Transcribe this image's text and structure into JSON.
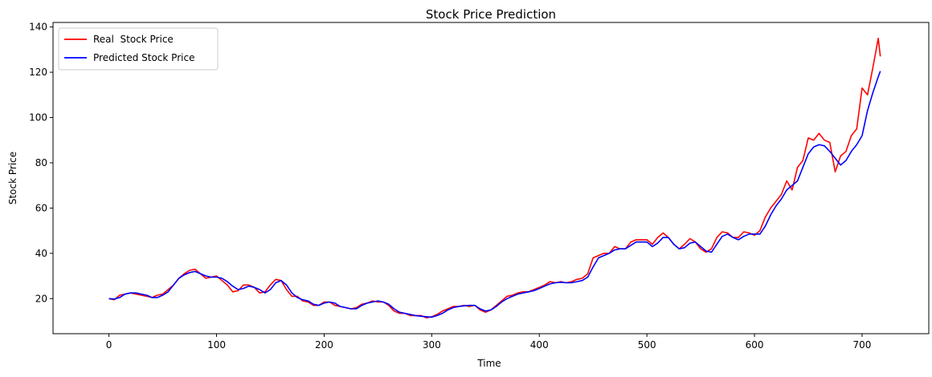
{
  "chart_data": {
    "type": "line",
    "title": "Stock Price Prediction",
    "xlabel": "Time",
    "ylabel": "Stock Price",
    "xlim": [
      -52,
      762
    ],
    "ylim": [
      4.5,
      142
    ],
    "xticks": [
      0,
      100,
      200,
      300,
      400,
      500,
      600,
      700
    ],
    "yticks": [
      20,
      40,
      60,
      80,
      100,
      120,
      140
    ],
    "grid": false,
    "legend_position": "top-left",
    "series": [
      {
        "name": "Real  Stock Price",
        "color": "#ff0000",
        "points": [
          [
            0,
            20
          ],
          [
            5,
            19.5
          ],
          [
            10,
            21.5
          ],
          [
            15,
            22
          ],
          [
            20,
            22.5
          ],
          [
            25,
            22
          ],
          [
            30,
            21.5
          ],
          [
            35,
            21
          ],
          [
            40,
            20.5
          ],
          [
            45,
            21.5
          ],
          [
            50,
            22
          ],
          [
            55,
            24
          ],
          [
            60,
            26
          ],
          [
            65,
            29
          ],
          [
            70,
            31
          ],
          [
            75,
            32.5
          ],
          [
            80,
            33
          ],
          [
            85,
            31
          ],
          [
            90,
            29
          ],
          [
            95,
            29.5
          ],
          [
            100,
            30
          ],
          [
            105,
            28
          ],
          [
            110,
            26
          ],
          [
            115,
            23
          ],
          [
            120,
            23.5
          ],
          [
            125,
            26
          ],
          [
            130,
            26
          ],
          [
            135,
            25
          ],
          [
            140,
            22.5
          ],
          [
            145,
            23
          ],
          [
            150,
            26
          ],
          [
            155,
            28.5
          ],
          [
            160,
            28
          ],
          [
            165,
            24
          ],
          [
            170,
            21
          ],
          [
            175,
            21
          ],
          [
            180,
            19
          ],
          [
            185,
            18.5
          ],
          [
            190,
            17
          ],
          [
            195,
            17
          ],
          [
            200,
            18.5
          ],
          [
            205,
            18.5
          ],
          [
            210,
            17
          ],
          [
            215,
            16.5
          ],
          [
            220,
            16
          ],
          [
            225,
            15.5
          ],
          [
            230,
            16
          ],
          [
            235,
            17.5
          ],
          [
            240,
            18
          ],
          [
            245,
            19
          ],
          [
            250,
            18.5
          ],
          [
            255,
            18.5
          ],
          [
            260,
            17
          ],
          [
            265,
            14.5
          ],
          [
            270,
            13.5
          ],
          [
            275,
            13.5
          ],
          [
            280,
            12.5
          ],
          [
            285,
            12.5
          ],
          [
            290,
            12.5
          ],
          [
            295,
            11.5
          ],
          [
            300,
            12
          ],
          [
            305,
            13
          ],
          [
            310,
            14.5
          ],
          [
            315,
            15.5
          ],
          [
            320,
            16.5
          ],
          [
            325,
            16.5
          ],
          [
            330,
            17
          ],
          [
            335,
            16.5
          ],
          [
            340,
            17
          ],
          [
            345,
            15
          ],
          [
            350,
            14
          ],
          [
            355,
            15
          ],
          [
            360,
            17
          ],
          [
            365,
            19
          ],
          [
            370,
            21
          ],
          [
            375,
            21.5
          ],
          [
            380,
            22.5
          ],
          [
            385,
            23
          ],
          [
            390,
            23
          ],
          [
            395,
            24
          ],
          [
            400,
            25
          ],
          [
            405,
            26
          ],
          [
            410,
            27.5
          ],
          [
            415,
            27
          ],
          [
            420,
            27.5
          ],
          [
            425,
            27
          ],
          [
            430,
            27.5
          ],
          [
            435,
            28.5
          ],
          [
            440,
            29
          ],
          [
            445,
            31
          ],
          [
            450,
            38
          ],
          [
            455,
            39
          ],
          [
            460,
            40
          ],
          [
            465,
            40
          ],
          [
            470,
            43
          ],
          [
            475,
            42
          ],
          [
            480,
            42
          ],
          [
            485,
            45
          ],
          [
            490,
            46
          ],
          [
            495,
            46
          ],
          [
            500,
            46
          ],
          [
            505,
            44
          ],
          [
            510,
            47
          ],
          [
            515,
            49
          ],
          [
            520,
            47
          ],
          [
            525,
            44
          ],
          [
            530,
            42
          ],
          [
            535,
            44
          ],
          [
            540,
            46.5
          ],
          [
            545,
            45
          ],
          [
            550,
            42
          ],
          [
            555,
            40.5
          ],
          [
            560,
            42
          ],
          [
            565,
            47
          ],
          [
            570,
            49.5
          ],
          [
            575,
            49
          ],
          [
            580,
            47
          ],
          [
            585,
            47
          ],
          [
            590,
            49.5
          ],
          [
            595,
            49
          ],
          [
            600,
            48
          ],
          [
            605,
            50
          ],
          [
            610,
            56
          ],
          [
            615,
            60
          ],
          [
            620,
            63
          ],
          [
            625,
            66
          ],
          [
            630,
            72
          ],
          [
            635,
            68
          ],
          [
            640,
            78
          ],
          [
            645,
            81
          ],
          [
            650,
            91
          ],
          [
            655,
            90
          ],
          [
            660,
            93
          ],
          [
            665,
            90
          ],
          [
            670,
            89
          ],
          [
            675,
            76
          ],
          [
            680,
            83
          ],
          [
            685,
            85
          ],
          [
            690,
            92
          ],
          [
            695,
            95
          ],
          [
            700,
            113
          ],
          [
            705,
            110
          ],
          [
            710,
            122
          ],
          [
            715,
            135
          ],
          [
            717,
            127
          ]
        ]
      },
      {
        "name": "Predicted Stock Price",
        "color": "#0000ff",
        "points": [
          [
            0,
            20
          ],
          [
            5,
            19.8
          ],
          [
            10,
            20.5
          ],
          [
            15,
            22
          ],
          [
            20,
            22.5
          ],
          [
            25,
            22.5
          ],
          [
            30,
            22
          ],
          [
            35,
            21.5
          ],
          [
            40,
            20.5
          ],
          [
            45,
            20.5
          ],
          [
            50,
            21.5
          ],
          [
            55,
            23
          ],
          [
            60,
            26
          ],
          [
            65,
            29
          ],
          [
            70,
            30.5
          ],
          [
            75,
            31.5
          ],
          [
            80,
            32
          ],
          [
            85,
            31
          ],
          [
            90,
            30
          ],
          [
            95,
            29.5
          ],
          [
            100,
            29.5
          ],
          [
            105,
            29
          ],
          [
            110,
            27.5
          ],
          [
            115,
            25.5
          ],
          [
            120,
            24
          ],
          [
            125,
            24.5
          ],
          [
            130,
            25.5
          ],
          [
            135,
            25
          ],
          [
            140,
            24
          ],
          [
            145,
            22.5
          ],
          [
            150,
            24
          ],
          [
            155,
            27
          ],
          [
            160,
            28
          ],
          [
            165,
            26
          ],
          [
            170,
            22.5
          ],
          [
            175,
            20.5
          ],
          [
            180,
            19.5
          ],
          [
            185,
            19
          ],
          [
            190,
            17.5
          ],
          [
            195,
            17
          ],
          [
            200,
            18
          ],
          [
            205,
            18.5
          ],
          [
            210,
            18
          ],
          [
            215,
            16.5
          ],
          [
            220,
            16
          ],
          [
            225,
            15.5
          ],
          [
            230,
            15.5
          ],
          [
            235,
            17
          ],
          [
            240,
            18
          ],
          [
            245,
            18.5
          ],
          [
            250,
            19
          ],
          [
            255,
            18.5
          ],
          [
            260,
            17.5
          ],
          [
            265,
            15.5
          ],
          [
            270,
            14
          ],
          [
            275,
            13.5
          ],
          [
            280,
            13
          ],
          [
            285,
            12.5
          ],
          [
            290,
            12.2
          ],
          [
            295,
            12
          ],
          [
            300,
            11.8
          ],
          [
            305,
            12.5
          ],
          [
            310,
            13.5
          ],
          [
            315,
            15
          ],
          [
            320,
            16
          ],
          [
            325,
            16.5
          ],
          [
            330,
            16.8
          ],
          [
            335,
            17
          ],
          [
            340,
            17
          ],
          [
            345,
            15.5
          ],
          [
            350,
            14.5
          ],
          [
            355,
            15
          ],
          [
            360,
            16.5
          ],
          [
            365,
            18.5
          ],
          [
            370,
            20
          ],
          [
            375,
            21
          ],
          [
            380,
            22
          ],
          [
            385,
            22.5
          ],
          [
            390,
            23
          ],
          [
            395,
            23.5
          ],
          [
            400,
            24.5
          ],
          [
            405,
            25.5
          ],
          [
            410,
            26.5
          ],
          [
            415,
            27
          ],
          [
            420,
            27.2
          ],
          [
            425,
            27
          ],
          [
            430,
            27
          ],
          [
            435,
            27.5
          ],
          [
            440,
            28
          ],
          [
            445,
            29.5
          ],
          [
            450,
            34
          ],
          [
            455,
            38
          ],
          [
            460,
            39
          ],
          [
            465,
            40
          ],
          [
            470,
            41.5
          ],
          [
            475,
            42
          ],
          [
            480,
            42
          ],
          [
            485,
            43.5
          ],
          [
            490,
            45
          ],
          [
            495,
            45
          ],
          [
            500,
            45
          ],
          [
            505,
            43
          ],
          [
            510,
            44.5
          ],
          [
            515,
            47
          ],
          [
            520,
            47
          ],
          [
            525,
            44
          ],
          [
            530,
            42
          ],
          [
            535,
            42.5
          ],
          [
            540,
            44.5
          ],
          [
            545,
            45
          ],
          [
            550,
            43
          ],
          [
            555,
            41
          ],
          [
            560,
            40.5
          ],
          [
            565,
            44
          ],
          [
            570,
            47.5
          ],
          [
            575,
            48.5
          ],
          [
            580,
            47
          ],
          [
            585,
            46
          ],
          [
            590,
            47.5
          ],
          [
            595,
            48.5
          ],
          [
            600,
            48.5
          ],
          [
            605,
            48.5
          ],
          [
            610,
            52
          ],
          [
            615,
            57
          ],
          [
            620,
            61
          ],
          [
            625,
            64
          ],
          [
            630,
            68
          ],
          [
            635,
            70
          ],
          [
            640,
            72
          ],
          [
            645,
            78
          ],
          [
            650,
            84
          ],
          [
            655,
            87
          ],
          [
            660,
            88
          ],
          [
            665,
            87.5
          ],
          [
            670,
            85
          ],
          [
            675,
            82
          ],
          [
            680,
            79
          ],
          [
            685,
            81
          ],
          [
            690,
            85
          ],
          [
            695,
            88
          ],
          [
            700,
            92
          ],
          [
            705,
            103
          ],
          [
            710,
            111
          ],
          [
            715,
            118
          ],
          [
            717,
            120.5
          ]
        ]
      }
    ]
  }
}
